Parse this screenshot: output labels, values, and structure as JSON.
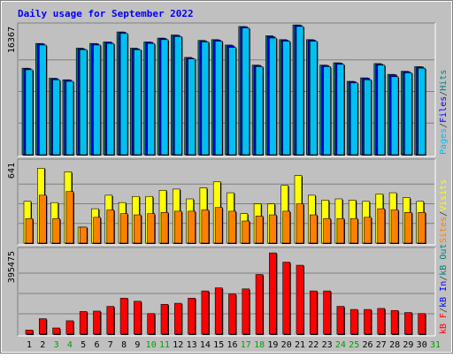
{
  "chart_data": {
    "title": "Daily usage for September 2022",
    "type": "bar",
    "days": [
      "1",
      "2",
      "3",
      "4",
      "5",
      "6",
      "7",
      "8",
      "9",
      "10",
      "11",
      "12",
      "13",
      "14",
      "15",
      "16",
      "17",
      "18",
      "19",
      "20",
      "21",
      "22",
      "23",
      "24",
      "25",
      "26",
      "27",
      "28",
      "29",
      "30",
      "31"
    ],
    "weekend_days": [
      "3",
      "4",
      "10",
      "11",
      "17",
      "18",
      "24",
      "25",
      "31"
    ],
    "panels": [
      {
        "id": "pages-files-hits",
        "ymax_label": "16367",
        "ymax": 16367,
        "legend": [
          {
            "text": "Pages",
            "color": "#00c0f0"
          },
          {
            "text": "/",
            "color": "#404040"
          },
          {
            "text": "Files",
            "color": "#0000ff"
          },
          {
            "text": "/",
            "color": "#404040"
          },
          {
            "text": "Hits",
            "color": "#008080"
          }
        ],
        "series": [
          {
            "name": "Hits",
            "color": "#00806a",
            "values": [
              11200,
              14400,
              9900,
              9700,
              13800,
              14400,
              14600,
              15900,
              13800,
              14600,
              15100,
              15500,
              12600,
              14800,
              14900,
              14200,
              16600,
              11600,
              15400,
              14900,
              16800,
              14900,
              11600,
              11900,
              9500,
              9950,
              11800,
              10400,
              10800,
              11400,
              0
            ]
          },
          {
            "name": "Files",
            "color": "#0000ff",
            "values": [
              11150,
              14350,
              9850,
              9650,
              13700,
              14350,
              14550,
              15850,
              13700,
              14550,
              15050,
              15450,
              12500,
              14700,
              14850,
              14100,
              16550,
              11550,
              15300,
              14850,
              16750,
              14850,
              11550,
              11850,
              9450,
              9900,
              11700,
              10350,
              10750,
              11350,
              0
            ]
          },
          {
            "name": "Pages",
            "color": "#00c0f0",
            "values": [
              11000,
              14200,
              9700,
              9500,
              13600,
              14200,
              14400,
              15700,
              13600,
              14400,
              14900,
              15300,
              12400,
              14600,
              14700,
              13900,
              16400,
              11400,
              15100,
              14700,
              16600,
              14700,
              11400,
              11700,
              9300,
              9700,
              11600,
              10100,
              10600,
              11200,
              0
            ]
          }
        ]
      },
      {
        "id": "visits-sites",
        "ymax_label": "641",
        "ymax": 641,
        "legend": [
          {
            "text": "Sites",
            "color": "#ff8000"
          },
          {
            "text": "/",
            "color": "#404040"
          },
          {
            "text": "Visits",
            "color": "#ffff00"
          }
        ],
        "series": [
          {
            "name": "Visits",
            "color": "#ffff00",
            "values": [
              340,
              610,
              330,
              580,
              130,
              280,
              390,
              330,
              380,
              380,
              430,
              440,
              360,
              450,
              500,
              410,
              240,
              320,
              320,
              470,
              550,
              390,
              350,
              360,
              350,
              340,
              400,
              410,
              370,
              340,
              0
            ]
          },
          {
            "name": "Sites",
            "color": "#ff8000",
            "values": [
              200,
              390,
              200,
              420,
              130,
              210,
              270,
              240,
              230,
              240,
              250,
              260,
              260,
              270,
              290,
              260,
              180,
              220,
              230,
              260,
              320,
              230,
              200,
              200,
              200,
              210,
              280,
              270,
              250,
              250,
              0
            ]
          }
        ]
      },
      {
        "id": "kb",
        "ymax_label": "395475",
        "ymax": 395475,
        "legend": [
          {
            "text": "kB F",
            "color": "#ff0000"
          },
          {
            "text": "/",
            "color": "#404040"
          },
          {
            "text": "kB In",
            "color": "#0000ff"
          },
          {
            "text": "/",
            "color": "#404040"
          },
          {
            "text": "kB Out",
            "color": "#008080"
          }
        ],
        "series": [
          {
            "name": "kB F",
            "color": "#ff0000",
            "values": [
              20000,
              75000,
              30000,
              65000,
              110000,
              112000,
              135000,
              175000,
              160000,
              100000,
              145000,
              150000,
              175000,
              210000,
              225000,
              195000,
              220000,
              290000,
              395000,
              350000,
              335000,
              210000,
              210000,
              135000,
              120000,
              120000,
              125000,
              115000,
              105000,
              100000,
              0
            ]
          }
        ]
      }
    ]
  }
}
